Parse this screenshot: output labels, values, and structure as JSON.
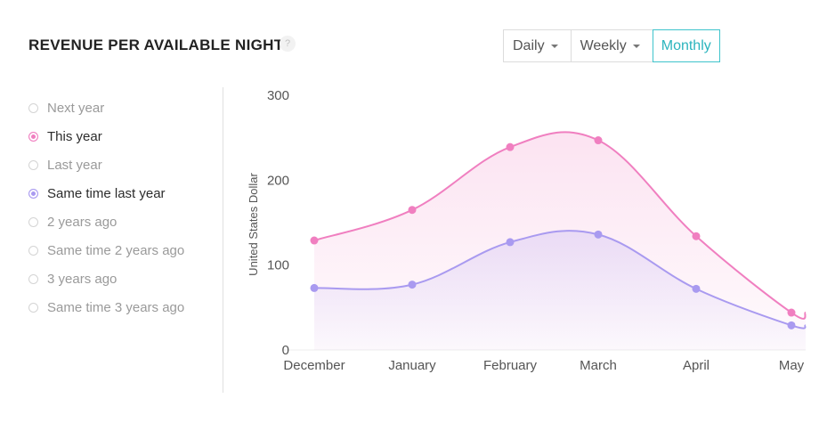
{
  "header": {
    "title": "REVENUE PER AVAILABLE NIGHT",
    "help": "?"
  },
  "period": [
    {
      "label": "Daily",
      "active": false
    },
    {
      "label": "Weekly",
      "active": false
    },
    {
      "label": "Monthly",
      "active": true
    }
  ],
  "legend": [
    {
      "label": "Next year",
      "on": false,
      "color": ""
    },
    {
      "label": "This year",
      "on": true,
      "color": "#f07fc0"
    },
    {
      "label": "Last year",
      "on": false,
      "color": ""
    },
    {
      "label": "Same time last year",
      "on": true,
      "color": "#a99af0"
    },
    {
      "label": "2 years ago",
      "on": false,
      "color": ""
    },
    {
      "label": "Same time 2 years ago",
      "on": false,
      "color": ""
    },
    {
      "label": "3 years ago",
      "on": false,
      "color": ""
    },
    {
      "label": "Same time 3 years ago",
      "on": false,
      "color": ""
    }
  ],
  "chart_data": {
    "type": "area",
    "categories": [
      "December",
      "January",
      "February",
      "March",
      "April",
      "May"
    ],
    "ylabel": "United States Dollar",
    "ylim": [
      0,
      300
    ],
    "yticks": [
      0,
      100,
      200,
      300
    ],
    "grid": false,
    "series": [
      {
        "name": "This year",
        "color": "#f07fc0",
        "values": [
          129,
          165,
          239,
          247,
          134,
          44
        ]
      },
      {
        "name": "Same time last year",
        "color": "#a99af0",
        "values": [
          73,
          77,
          127,
          136,
          72,
          29
        ]
      }
    ]
  }
}
